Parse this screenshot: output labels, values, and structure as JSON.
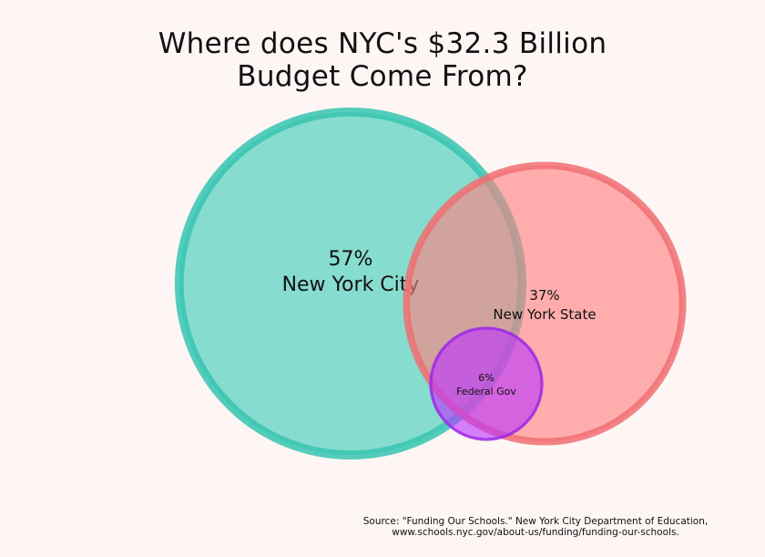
{
  "chart_data": {
    "type": "bubble",
    "title_lines": [
      "Where does NYC's $32.3 Billion",
      "Budget Come From?"
    ],
    "series": [
      {
        "name": "New York City",
        "value": 57,
        "pct_label": "57%",
        "fill": "#3ecbb6",
        "stroke": "#36c4b0"
      },
      {
        "name": "New York State",
        "value": 37,
        "pct_label": "37%",
        "fill": "#ff8080",
        "stroke": "#f06f72"
      },
      {
        "name": "Federal Gov",
        "value": 6,
        "pct_label": "6%",
        "fill": "#bb33ff",
        "stroke": "#9d27e8"
      }
    ]
  },
  "source_lines": [
    "Source: \"Funding Our Schools.\" New York City Department of Education,",
    "www.schools.nyc.gov/about-us/funding/funding-our-schools."
  ]
}
